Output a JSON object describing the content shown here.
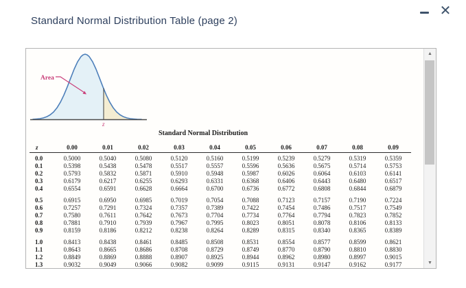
{
  "window": {
    "title": "Standard Normal Distribution Table (page 2)",
    "close_glyph": "✕"
  },
  "figure": {
    "area_label": "Area",
    "z_label": "z",
    "colors": {
      "curve_stroke": "#4d7fba",
      "left_fill": "#e4f1f7",
      "right_fill": "#f4edd2",
      "annotation": "#c9407a"
    }
  },
  "table": {
    "title": "Standard Normal Distribution",
    "z_header": "z",
    "col_headers": [
      "0.00",
      "0.01",
      "0.02",
      "0.03",
      "0.04",
      "0.05",
      "0.06",
      "0.07",
      "0.08",
      "0.09"
    ],
    "groups": [
      {
        "rows": [
          {
            "z": "0.0",
            "values": [
              "0.5000",
              "0.5040",
              "0.5080",
              "0.5120",
              "0.5160",
              "0.5199",
              "0.5239",
              "0.5279",
              "0.5319",
              "0.5359"
            ]
          },
          {
            "z": "0.1",
            "values": [
              "0.5398",
              "0.5438",
              "0.5478",
              "0.5517",
              "0.5557",
              "0.5596",
              "0.5636",
              "0.5675",
              "0.5714",
              "0.5753"
            ]
          },
          {
            "z": "0.2",
            "values": [
              "0.5793",
              "0.5832",
              "0.5871",
              "0.5910",
              "0.5948",
              "0.5987",
              "0.6026",
              "0.6064",
              "0.6103",
              "0.6141"
            ]
          },
          {
            "z": "0.3",
            "values": [
              "0.6179",
              "0.6217",
              "0.6255",
              "0.6293",
              "0.6331",
              "0.6368",
              "0.6406",
              "0.6443",
              "0.6480",
              "0.6517"
            ]
          },
          {
            "z": "0.4",
            "values": [
              "0.6554",
              "0.6591",
              "0.6628",
              "0.6664",
              "0.6700",
              "0.6736",
              "0.6772",
              "0.6808",
              "0.6844",
              "0.6879"
            ]
          }
        ]
      },
      {
        "rows": [
          {
            "z": "0.5",
            "values": [
              "0.6915",
              "0.6950",
              "0.6985",
              "0.7019",
              "0.7054",
              "0.7088",
              "0.7123",
              "0.7157",
              "0.7190",
              "0.7224"
            ]
          },
          {
            "z": "0.6",
            "values": [
              "0.7257",
              "0.7291",
              "0.7324",
              "0.7357",
              "0.7389",
              "0.7422",
              "0.7454",
              "0.7486",
              "0.7517",
              "0.7549"
            ]
          },
          {
            "z": "0.7",
            "values": [
              "0.7580",
              "0.7611",
              "0.7642",
              "0.7673",
              "0.7704",
              "0.7734",
              "0.7764",
              "0.7794",
              "0.7823",
              "0.7852"
            ]
          },
          {
            "z": "0.8",
            "values": [
              "0.7881",
              "0.7910",
              "0.7939",
              "0.7967",
              "0.7995",
              "0.8023",
              "0.8051",
              "0.8078",
              "0.8106",
              "0.8133"
            ]
          },
          {
            "z": "0.9",
            "values": [
              "0.8159",
              "0.8186",
              "0.8212",
              "0.8238",
              "0.8264",
              "0.8289",
              "0.8315",
              "0.8340",
              "0.8365",
              "0.8389"
            ]
          }
        ]
      },
      {
        "rows": [
          {
            "z": "1.0",
            "values": [
              "0.8413",
              "0.8438",
              "0.8461",
              "0.8485",
              "0.8508",
              "0.8531",
              "0.8554",
              "0.8577",
              "0.8599",
              "0.8621"
            ]
          },
          {
            "z": "1.1",
            "values": [
              "0.8643",
              "0.8665",
              "0.8686",
              "0.8708",
              "0.8729",
              "0.8749",
              "0.8770",
              "0.8790",
              "0.8810",
              "0.8830"
            ]
          },
          {
            "z": "1.2",
            "values": [
              "0.8849",
              "0.8869",
              "0.8888",
              "0.8907",
              "0.8925",
              "0.8944",
              "0.8962",
              "0.8980",
              "0.8997",
              "0.9015"
            ]
          },
          {
            "z": "1.3",
            "values": [
              "0.9032",
              "0.9049",
              "0.9066",
              "0.9082",
              "0.9099",
              "0.9115",
              "0.9131",
              "0.9147",
              "0.9162",
              "0.9177"
            ]
          }
        ]
      }
    ]
  },
  "scrollbar": {
    "up_glyph": "▲",
    "down_glyph": "▼"
  }
}
